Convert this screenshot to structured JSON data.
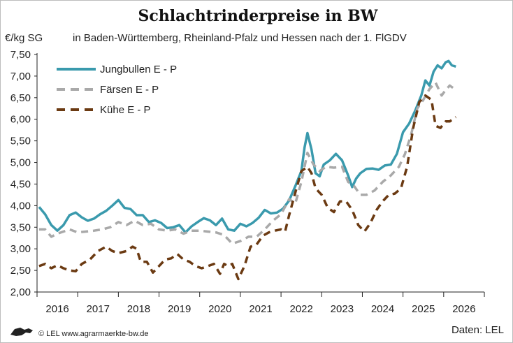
{
  "chart_data": {
    "type": "line",
    "title": "Schlachtrinderpreise in BW",
    "subtitle": "in Baden-Württemberg, Rheinland-Pfalz und Hessen nach der 1. FlGDV",
    "ylabel": "€/kg SG",
    "ylim": [
      2.0,
      7.5
    ],
    "yticks": [
      "2,00",
      "2,50",
      "3,00",
      "3,50",
      "4,00",
      "4,50",
      "5,00",
      "5,50",
      "6,00",
      "6,50",
      "7,00",
      "7,50"
    ],
    "xlim": [
      2015.5,
      2026.5
    ],
    "xtick_labels": [
      "2016",
      "2017",
      "2018",
      "2019",
      "2020",
      "2021",
      "2022",
      "2023",
      "2024",
      "2025",
      "2026"
    ],
    "grid": false,
    "legend_position": "top-left",
    "source": "Daten: LEL",
    "footer": "© LEL www.agrarmaerkte-bw.de",
    "series": [
      {
        "name": "Jungbullen E - P",
        "color": "#3a9aad",
        "style": "solid",
        "points": [
          [
            2015.55,
            3.97
          ],
          [
            2015.7,
            3.8
          ],
          [
            2015.85,
            3.55
          ],
          [
            2016.0,
            3.42
          ],
          [
            2016.15,
            3.55
          ],
          [
            2016.3,
            3.78
          ],
          [
            2016.45,
            3.84
          ],
          [
            2016.6,
            3.73
          ],
          [
            2016.75,
            3.65
          ],
          [
            2016.9,
            3.7
          ],
          [
            2017.05,
            3.8
          ],
          [
            2017.2,
            3.88
          ],
          [
            2017.35,
            4.0
          ],
          [
            2017.5,
            4.13
          ],
          [
            2017.65,
            3.95
          ],
          [
            2017.8,
            3.92
          ],
          [
            2017.95,
            3.78
          ],
          [
            2018.1,
            3.78
          ],
          [
            2018.25,
            3.62
          ],
          [
            2018.4,
            3.66
          ],
          [
            2018.55,
            3.6
          ],
          [
            2018.7,
            3.48
          ],
          [
            2018.85,
            3.5
          ],
          [
            2019.0,
            3.55
          ],
          [
            2019.15,
            3.38
          ],
          [
            2019.3,
            3.52
          ],
          [
            2019.45,
            3.62
          ],
          [
            2019.6,
            3.71
          ],
          [
            2019.75,
            3.66
          ],
          [
            2019.9,
            3.55
          ],
          [
            2020.05,
            3.7
          ],
          [
            2020.2,
            3.45
          ],
          [
            2020.35,
            3.42
          ],
          [
            2020.5,
            3.58
          ],
          [
            2020.65,
            3.52
          ],
          [
            2020.8,
            3.6
          ],
          [
            2020.95,
            3.72
          ],
          [
            2021.1,
            3.9
          ],
          [
            2021.25,
            3.82
          ],
          [
            2021.4,
            3.84
          ],
          [
            2021.55,
            3.93
          ],
          [
            2021.7,
            4.12
          ],
          [
            2021.85,
            4.45
          ],
          [
            2022.0,
            4.8
          ],
          [
            2022.08,
            5.35
          ],
          [
            2022.15,
            5.68
          ],
          [
            2022.25,
            5.3
          ],
          [
            2022.35,
            4.75
          ],
          [
            2022.45,
            4.68
          ],
          [
            2022.55,
            4.95
          ],
          [
            2022.7,
            5.05
          ],
          [
            2022.85,
            5.2
          ],
          [
            2023.0,
            5.05
          ],
          [
            2023.15,
            4.7
          ],
          [
            2023.25,
            4.43
          ],
          [
            2023.35,
            4.63
          ],
          [
            2023.45,
            4.75
          ],
          [
            2023.6,
            4.85
          ],
          [
            2023.75,
            4.86
          ],
          [
            2023.9,
            4.83
          ],
          [
            2024.05,
            4.93
          ],
          [
            2024.2,
            4.95
          ],
          [
            2024.35,
            5.2
          ],
          [
            2024.5,
            5.7
          ],
          [
            2024.65,
            5.9
          ],
          [
            2024.8,
            6.2
          ],
          [
            2024.95,
            6.55
          ],
          [
            2025.05,
            6.9
          ],
          [
            2025.15,
            6.78
          ],
          [
            2025.25,
            7.1
          ],
          [
            2025.35,
            7.25
          ],
          [
            2025.45,
            7.18
          ],
          [
            2025.55,
            7.32
          ],
          [
            2025.62,
            7.35
          ],
          [
            2025.7,
            7.25
          ],
          [
            2025.8,
            7.22
          ]
        ]
      },
      {
        "name": "Färsen E - P",
        "color": "#a9a9a9",
        "style": "dashed",
        "points": [
          [
            2015.55,
            3.45
          ],
          [
            2015.7,
            3.45
          ],
          [
            2015.85,
            3.28
          ],
          [
            2016.0,
            3.35
          ],
          [
            2016.15,
            3.4
          ],
          [
            2016.3,
            3.45
          ],
          [
            2016.5,
            3.38
          ],
          [
            2016.7,
            3.4
          ],
          [
            2016.9,
            3.42
          ],
          [
            2017.1,
            3.45
          ],
          [
            2017.3,
            3.5
          ],
          [
            2017.5,
            3.62
          ],
          [
            2017.7,
            3.55
          ],
          [
            2017.9,
            3.65
          ],
          [
            2018.1,
            3.55
          ],
          [
            2018.3,
            3.58
          ],
          [
            2018.5,
            3.45
          ],
          [
            2018.7,
            3.42
          ],
          [
            2018.9,
            3.45
          ],
          [
            2019.1,
            3.35
          ],
          [
            2019.3,
            3.42
          ],
          [
            2019.5,
            3.42
          ],
          [
            2019.7,
            3.4
          ],
          [
            2019.9,
            3.38
          ],
          [
            2020.1,
            3.32
          ],
          [
            2020.3,
            3.12
          ],
          [
            2020.5,
            3.18
          ],
          [
            2020.7,
            3.28
          ],
          [
            2020.9,
            3.28
          ],
          [
            2021.1,
            3.45
          ],
          [
            2021.3,
            3.65
          ],
          [
            2021.5,
            3.8
          ],
          [
            2021.7,
            4.15
          ],
          [
            2021.85,
            4.05
          ],
          [
            2022.0,
            4.55
          ],
          [
            2022.15,
            5.22
          ],
          [
            2022.3,
            4.95
          ],
          [
            2022.45,
            4.8
          ],
          [
            2022.6,
            4.9
          ],
          [
            2022.8,
            4.88
          ],
          [
            2023.0,
            4.9
          ],
          [
            2023.15,
            4.55
          ],
          [
            2023.3,
            4.45
          ],
          [
            2023.45,
            4.25
          ],
          [
            2023.6,
            4.25
          ],
          [
            2023.8,
            4.35
          ],
          [
            2024.0,
            4.55
          ],
          [
            2024.2,
            4.7
          ],
          [
            2024.4,
            4.9
          ],
          [
            2024.55,
            5.2
          ],
          [
            2024.7,
            5.65
          ],
          [
            2024.85,
            6.25
          ],
          [
            2025.0,
            6.45
          ],
          [
            2025.15,
            6.7
          ],
          [
            2025.3,
            6.85
          ],
          [
            2025.45,
            6.55
          ],
          [
            2025.55,
            6.68
          ],
          [
            2025.65,
            6.78
          ],
          [
            2025.8,
            6.68
          ]
        ]
      },
      {
        "name": "Kühe E - P",
        "color": "#6b3a12",
        "style": "dashed",
        "points": [
          [
            2015.55,
            2.6
          ],
          [
            2015.7,
            2.65
          ],
          [
            2015.85,
            2.55
          ],
          [
            2016.0,
            2.62
          ],
          [
            2016.15,
            2.55
          ],
          [
            2016.3,
            2.5
          ],
          [
            2016.45,
            2.48
          ],
          [
            2016.6,
            2.65
          ],
          [
            2016.8,
            2.75
          ],
          [
            2017.0,
            2.95
          ],
          [
            2017.2,
            3.05
          ],
          [
            2017.35,
            2.95
          ],
          [
            2017.5,
            2.9
          ],
          [
            2017.7,
            2.95
          ],
          [
            2017.85,
            3.05
          ],
          [
            2017.95,
            3.0
          ],
          [
            2018.05,
            2.7
          ],
          [
            2018.2,
            2.7
          ],
          [
            2018.35,
            2.45
          ],
          [
            2018.5,
            2.6
          ],
          [
            2018.65,
            2.75
          ],
          [
            2018.8,
            2.78
          ],
          [
            2018.95,
            2.88
          ],
          [
            2019.1,
            2.75
          ],
          [
            2019.25,
            2.7
          ],
          [
            2019.4,
            2.6
          ],
          [
            2019.55,
            2.55
          ],
          [
            2019.7,
            2.6
          ],
          [
            2019.85,
            2.65
          ],
          [
            2020.0,
            2.42
          ],
          [
            2020.1,
            2.65
          ],
          [
            2020.2,
            2.6
          ],
          [
            2020.3,
            2.65
          ],
          [
            2020.45,
            2.3
          ],
          [
            2020.6,
            2.6
          ],
          [
            2020.75,
            3.05
          ],
          [
            2020.9,
            3.1
          ],
          [
            2021.05,
            3.3
          ],
          [
            2021.2,
            3.38
          ],
          [
            2021.35,
            3.42
          ],
          [
            2021.5,
            3.45
          ],
          [
            2021.6,
            3.4
          ],
          [
            2021.7,
            3.78
          ],
          [
            2021.85,
            4.3
          ],
          [
            2022.0,
            4.8
          ],
          [
            2022.15,
            4.9
          ],
          [
            2022.25,
            4.75
          ],
          [
            2022.35,
            4.4
          ],
          [
            2022.5,
            4.25
          ],
          [
            2022.65,
            3.95
          ],
          [
            2022.8,
            3.85
          ],
          [
            2022.95,
            4.1
          ],
          [
            2023.1,
            4.1
          ],
          [
            2023.25,
            3.9
          ],
          [
            2023.4,
            3.55
          ],
          [
            2023.55,
            3.4
          ],
          [
            2023.7,
            3.6
          ],
          [
            2023.85,
            3.9
          ],
          [
            2024.0,
            4.1
          ],
          [
            2024.15,
            4.25
          ],
          [
            2024.3,
            4.28
          ],
          [
            2024.45,
            4.4
          ],
          [
            2024.6,
            4.9
          ],
          [
            2024.75,
            5.8
          ],
          [
            2024.9,
            6.4
          ],
          [
            2025.05,
            6.55
          ],
          [
            2025.2,
            6.45
          ],
          [
            2025.3,
            5.85
          ],
          [
            2025.42,
            5.8
          ],
          [
            2025.55,
            5.95
          ],
          [
            2025.65,
            5.95
          ],
          [
            2025.8,
            6.05
          ]
        ]
      }
    ]
  }
}
